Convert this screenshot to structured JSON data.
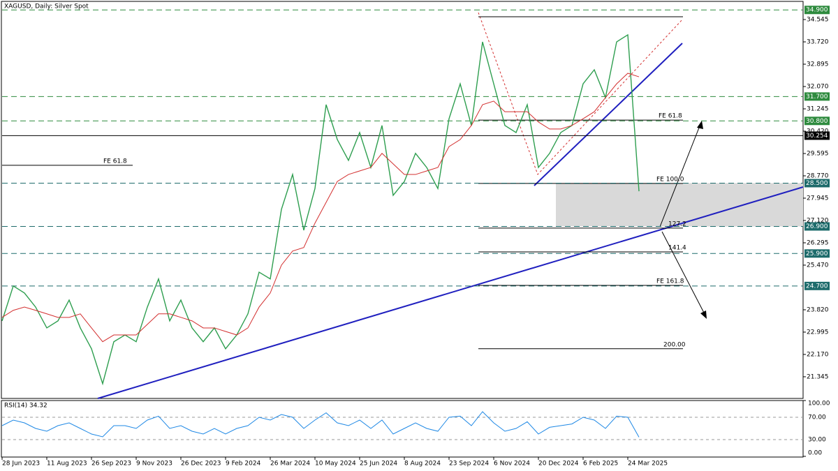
{
  "chart_data": [
    {
      "type": "line",
      "title": "XAGUSD, Daily: Silver Spot",
      "categories": [
        "28 Jun 2023",
        null,
        null,
        null,
        "11 Aug 2023",
        null,
        null,
        null,
        "26 Sep 2023",
        null,
        null,
        null,
        "9 Nov 2023",
        null,
        null,
        null,
        "26 Dec 2023",
        null,
        null,
        null,
        "9 Feb 2024",
        null,
        null,
        null,
        "26 Mar 2024",
        null,
        null,
        null,
        "10 May 2024",
        null,
        null,
        null,
        "25 Jun 2024",
        null,
        null,
        null,
        "8 Aug 2024",
        null,
        null,
        null,
        "23 Sep 2024",
        null,
        null,
        null,
        "6 Nov 2024",
        null,
        null,
        null,
        "20 Dec 2024",
        null,
        null,
        null,
        "6 Feb 2025",
        null,
        null,
        null,
        "24 Mar 2025",
        null
      ],
      "series": [
        {
          "color": "#2e9e4f",
          "values": [
            23.41,
            24.7,
            24.44,
            23.92,
            23.15,
            23.41,
            24.18,
            23.15,
            22.38,
            21.09,
            22.64,
            22.89,
            22.64,
            23.92,
            24.96,
            23.41,
            24.18,
            23.15,
            22.64,
            23.15,
            22.38,
            22.89,
            23.67,
            25.21,
            24.96,
            27.53,
            28.82,
            26.76,
            28.3,
            31.4,
            30.11,
            29.34,
            30.37,
            29.08,
            30.63,
            28.05,
            28.56,
            29.6,
            29.08,
            28.3,
            30.88,
            32.17,
            30.63,
            33.72,
            32.17,
            30.63,
            30.37,
            31.4,
            29.08,
            29.6,
            30.37,
            30.63,
            32.17,
            32.69,
            31.66,
            33.72,
            33.98,
            28.2
          ]
        },
        {
          "color": "#d32f2f",
          "values": [
            23.54,
            23.8,
            23.92,
            23.8,
            23.67,
            23.54,
            23.54,
            23.67,
            23.15,
            22.64,
            22.89,
            22.89,
            22.89,
            23.28,
            23.67,
            23.67,
            23.54,
            23.41,
            23.15,
            23.15,
            23.02,
            22.89,
            23.15,
            23.92,
            24.44,
            25.47,
            25.99,
            26.12,
            27.02,
            27.79,
            28.56,
            28.82,
            28.95,
            29.08,
            29.6,
            29.21,
            28.82,
            28.82,
            28.95,
            29.08,
            29.85,
            30.11,
            30.63,
            31.4,
            31.53,
            31.14,
            31.14,
            31.14,
            30.76,
            30.5,
            30.5,
            30.63,
            30.88,
            31.14,
            31.66,
            32.17,
            32.56,
            32.43
          ]
        }
      ],
      "ylim": [
        20.57,
        35.19
      ],
      "yticks": [
        {
          "value": 34.545,
          "label": "34.545"
        },
        {
          "value": 33.72,
          "label": "33.720"
        },
        {
          "value": 32.895,
          "label": "32.895"
        },
        {
          "value": 32.07,
          "label": "32.070"
        },
        {
          "value": 31.245,
          "label": "31.245"
        },
        {
          "value": 30.42,
          "label": "30.420"
        },
        {
          "value": 29.595,
          "label": "29.595"
        },
        {
          "value": 28.77,
          "label": "28.770"
        },
        {
          "value": 27.945,
          "label": "27.945"
        },
        {
          "value": 27.12,
          "label": "27.120"
        },
        {
          "value": 26.295,
          "label": "26.295"
        },
        {
          "value": 25.47,
          "label": "25.470"
        },
        {
          "value": 23.82,
          "label": "23.820"
        },
        {
          "value": 22.995,
          "label": "22.995"
        },
        {
          "value": 22.17,
          "label": "22.170"
        },
        {
          "value": 21.345,
          "label": "21.345"
        }
      ],
      "levels": [
        {
          "value": 34.9,
          "label": "34.900",
          "color": "#2e8b3e"
        },
        {
          "value": 31.7,
          "label": "31.700",
          "color": "#2e8b3e"
        },
        {
          "value": 30.8,
          "label": "30.800",
          "color": "#2e8b3e"
        },
        {
          "value": 30.254,
          "label": "30.254",
          "color": "#000000"
        },
        {
          "value": 28.5,
          "label": "28.500",
          "color": "#1d6b6b"
        },
        {
          "value": 26.9,
          "label": "26.900",
          "color": "#1d6b6b"
        },
        {
          "value": 25.9,
          "label": "25.900",
          "color": "#1d6b6b"
        },
        {
          "value": 24.7,
          "label": "24.700",
          "color": "#1d6b6b"
        }
      ],
      "annotations": [
        {
          "value": 29.16,
          "label": "FE 61.8"
        },
        {
          "value": 30.83,
          "label": "FE 61.8"
        },
        {
          "value": 28.49,
          "label": "FE 100.0"
        },
        {
          "value": 26.84,
          "label": "127.2"
        },
        {
          "value": 25.96,
          "label": "141.4"
        },
        {
          "value": 24.72,
          "label": "FE 161.8"
        },
        {
          "value": 22.38,
          "label": "200.00"
        }
      ]
    },
    {
      "type": "line",
      "title": "RSI(14) 34.32",
      "color": "#1e88e5",
      "values": [
        55,
        65,
        60,
        50,
        45,
        55,
        60,
        50,
        40,
        35,
        55,
        55,
        50,
        65,
        72,
        50,
        55,
        45,
        40,
        50,
        40,
        50,
        55,
        70,
        65,
        75,
        70,
        50,
        65,
        78,
        60,
        55,
        65,
        50,
        65,
        40,
        50,
        60,
        50,
        45,
        70,
        72,
        55,
        80,
        60,
        45,
        50,
        62,
        40,
        52,
        55,
        58,
        70,
        65,
        50,
        72,
        70,
        34.32
      ],
      "ylim": [
        0,
        100
      ],
      "yticks": [
        {
          "value": 100,
          "label": "100.00"
        },
        {
          "value": 70,
          "label": "70.00"
        },
        {
          "value": 30,
          "label": "30.00"
        },
        {
          "value": 0,
          "label": "0.00"
        }
      ]
    }
  ]
}
